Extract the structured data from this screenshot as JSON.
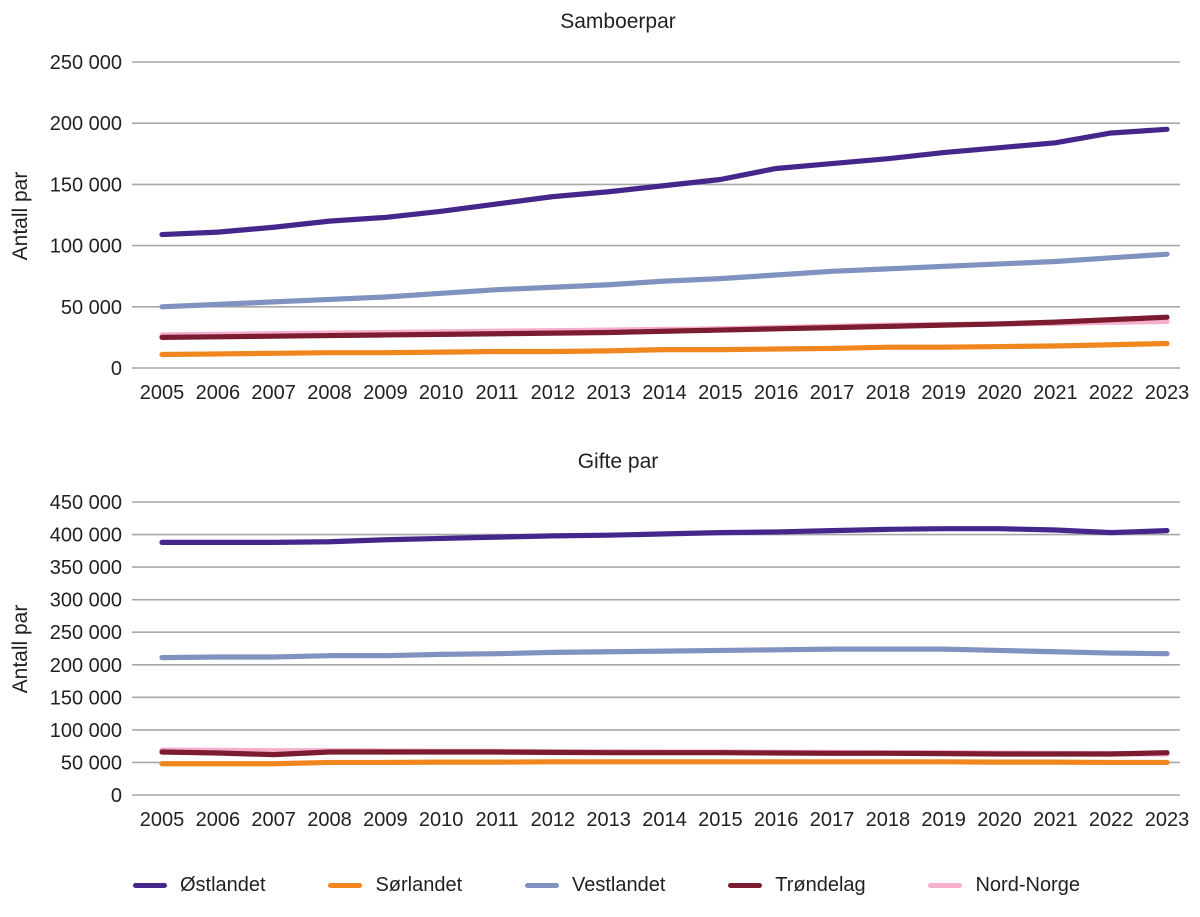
{
  "page": {
    "background": "#ffffff"
  },
  "colors": {
    "grid": "#a8a6a7",
    "text": "#231f20"
  },
  "legend": [
    {
      "label": "Østlandet",
      "color": "#45278b"
    },
    {
      "label": "Sørlandet",
      "color": "#f0861e"
    },
    {
      "label": "Vestlandet",
      "color": "#8093c0"
    },
    {
      "label": "Trøndelag",
      "color": "#7b1c31"
    },
    {
      "label": "Nord-Norge",
      "color": "#f5aecb"
    }
  ],
  "chart_data": [
    {
      "type": "line",
      "title": "Samboerpar",
      "xlabel": "",
      "ylabel": "Antall par",
      "categories": [
        "2005",
        "2006",
        "2007",
        "2008",
        "2009",
        "2010",
        "2011",
        "2012",
        "2013",
        "2014",
        "2015",
        "2016",
        "2017",
        "2018",
        "2019",
        "2020",
        "2021",
        "2022",
        "2023"
      ],
      "ylim": [
        0,
        250000
      ],
      "ytick_step": 50000,
      "grid": "horizontal",
      "legend_position": "bottom-shared",
      "series": [
        {
          "name": "Østlandet",
          "color": "#45278b",
          "values": [
            109000,
            111000,
            115000,
            120000,
            123000,
            128000,
            134000,
            140000,
            144000,
            149000,
            154000,
            163000,
            167000,
            171000,
            176000,
            180000,
            184000,
            192000,
            195000
          ]
        },
        {
          "name": "Vestlandet",
          "color": "#8093c0",
          "values": [
            50000,
            52000,
            54000,
            56000,
            58000,
            61000,
            64000,
            66000,
            68000,
            71000,
            73000,
            76000,
            79000,
            81000,
            83000,
            85000,
            87000,
            90000,
            93000
          ]
        },
        {
          "name": "Sørlandet",
          "color": "#f0861e",
          "values": [
            11000,
            11500,
            12000,
            12500,
            12500,
            13000,
            13500,
            13500,
            14000,
            15000,
            15000,
            15500,
            16000,
            17000,
            17000,
            17500,
            18000,
            19000,
            20000
          ]
        },
        {
          "name": "Nord-Norge",
          "color": "#f5aecb",
          "values": [
            27000,
            27500,
            28000,
            28500,
            29000,
            29500,
            30000,
            30500,
            31000,
            31500,
            32000,
            33000,
            34000,
            35000,
            35500,
            36000,
            36500,
            37500,
            38000
          ]
        },
        {
          "name": "Trøndelag",
          "color": "#7b1c31",
          "values": [
            25000,
            25500,
            26000,
            26500,
            27000,
            27500,
            28000,
            28500,
            29000,
            30000,
            31000,
            32000,
            33000,
            34000,
            35000,
            36000,
            37500,
            39500,
            41500
          ]
        }
      ]
    },
    {
      "type": "line",
      "title": "Gifte par",
      "xlabel": "",
      "ylabel": "Antall par",
      "categories": [
        "2005",
        "2006",
        "2007",
        "2008",
        "2009",
        "2010",
        "2011",
        "2012",
        "2013",
        "2014",
        "2015",
        "2016",
        "2017",
        "2018",
        "2019",
        "2020",
        "2021",
        "2022",
        "2023"
      ],
      "ylim": [
        0,
        450000
      ],
      "ytick_step": 50000,
      "grid": "horizontal",
      "legend_position": "bottom-shared",
      "series": [
        {
          "name": "Østlandet",
          "color": "#45278b",
          "values": [
            388000,
            388000,
            388000,
            389000,
            392000,
            394000,
            396000,
            398000,
            399000,
            401000,
            403000,
            404000,
            406000,
            408000,
            409000,
            409000,
            407000,
            403000,
            406000
          ]
        },
        {
          "name": "Vestlandet",
          "color": "#8093c0",
          "values": [
            211000,
            212000,
            212000,
            214000,
            214000,
            216000,
            217000,
            219000,
            220000,
            221000,
            222000,
            223000,
            224000,
            224000,
            224000,
            222000,
            220000,
            218000,
            217000
          ]
        },
        {
          "name": "Sørlandet",
          "color": "#f0861e",
          "values": [
            48000,
            48000,
            48000,
            50000,
            50000,
            50500,
            50500,
            51000,
            51000,
            51000,
            51000,
            51000,
            51000,
            51000,
            51000,
            50500,
            50500,
            50000,
            50000
          ]
        },
        {
          "name": "Nord-Norge",
          "color": "#f5aecb",
          "values": [
            69000,
            68500,
            68000,
            68000,
            67500,
            67000,
            67000,
            66500,
            66500,
            66000,
            66000,
            65500,
            65500,
            65000,
            65000,
            64500,
            64000,
            63500,
            63000
          ]
        },
        {
          "name": "Trøndelag",
          "color": "#7b1c31",
          "values": [
            66000,
            64500,
            62000,
            66000,
            66000,
            66000,
            66000,
            65500,
            65000,
            65000,
            65000,
            64500,
            64000,
            64000,
            63500,
            63000,
            63000,
            63000,
            65000
          ]
        }
      ]
    }
  ]
}
